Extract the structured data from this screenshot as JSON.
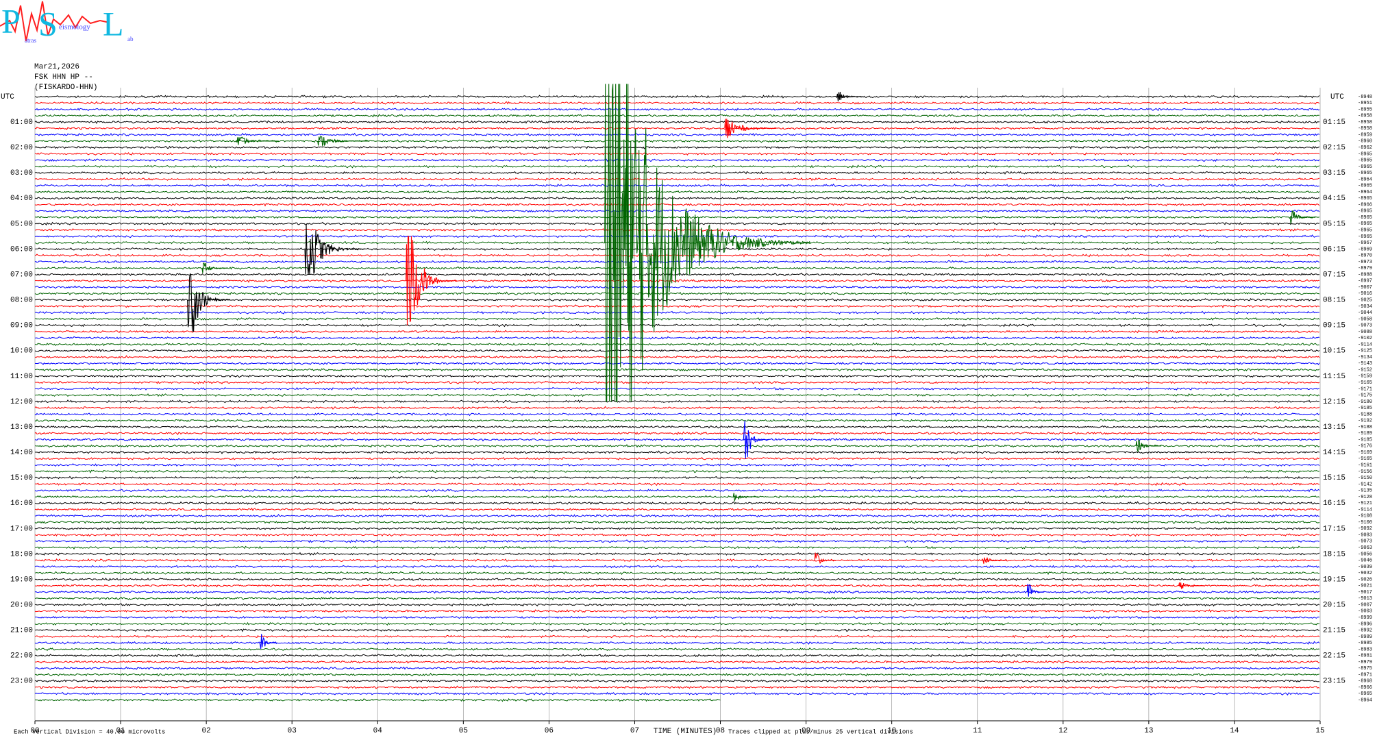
{
  "logo": {
    "p": "P",
    "s": "S",
    "l": "L",
    "w1": "atras",
    "w2": "eismology",
    "w3": "ab"
  },
  "header": {
    "date": "Mar21,2026",
    "channel": "FSK HHN HP --",
    "station": "(FISKARDO-HHN)"
  },
  "chart_data": {
    "type": "helicorder",
    "utc_left": "UTC",
    "utc_right": "UTC",
    "hours_left": [
      "01:00",
      "02:00",
      "03:00",
      "04:00",
      "05:00",
      "06:00",
      "07:00",
      "08:00",
      "09:00",
      "10:00",
      "11:00",
      "12:00",
      "13:00",
      "14:00",
      "15:00",
      "16:00",
      "17:00",
      "18:00",
      "19:00",
      "20:00",
      "21:00",
      "22:00",
      "23:00"
    ],
    "hours_right": [
      "01:15",
      "02:15",
      "03:15",
      "04:15",
      "05:15",
      "06:15",
      "07:15",
      "08:15",
      "09:15",
      "10:15",
      "11:15",
      "12:15",
      "13:15",
      "14:15",
      "15:15",
      "16:15",
      "17:15",
      "18:15",
      "19:15",
      "20:15",
      "21:15",
      "22:15",
      "23:15"
    ],
    "trace_colors": [
      "#000000",
      "#ff0000",
      "#0000ff",
      "#006400"
    ],
    "offsets": [
      -8948,
      -8951,
      -8955,
      -8958,
      -8958,
      -8958,
      -8959,
      -8960,
      -8962,
      -8965,
      -8965,
      -8965,
      -8965,
      -8964,
      -8965,
      -8964,
      -8965,
      -8966,
      -8965,
      -8965,
      -8965,
      -8965,
      -8965,
      -8967,
      -8969,
      -8970,
      -8973,
      -8979,
      -8988,
      -8997,
      -9007,
      -9016,
      -9025,
      -9034,
      -9044,
      -9058,
      -9073,
      -9088,
      -9102,
      -9114,
      -9125,
      -9134,
      -9143,
      -9152,
      -9159,
      -9165,
      -9171,
      -9175,
      -9180,
      -9185,
      -9188,
      -9192,
      -9188,
      -9189,
      -9185,
      -9176,
      -9169,
      -9165,
      -9161,
      -9156,
      -9150,
      -9142,
      -9135,
      -9128,
      -9121,
      -9114,
      -9108,
      -9100,
      -9092,
      -9083,
      -9073,
      -9063,
      -9056,
      -9046,
      -9039,
      -9032,
      -9026,
      -9021,
      -9017,
      -9013,
      -9007,
      -9003,
      -8999,
      -8996,
      -8992,
      -8989,
      -8985,
      -8983,
      -8981,
      -8979,
      -8975,
      -8971,
      -8968,
      -8966,
      -8965,
      -8964
    ],
    "last_trace_minutes": 8,
    "events": [
      {
        "trace": 0,
        "minute": 9.35,
        "amplitude": 0.8,
        "duration": 0.3
      },
      {
        "trace": 5,
        "minute": 8.05,
        "amplitude": 1.5,
        "duration": 0.6
      },
      {
        "trace": 7,
        "minute": 2.35,
        "amplitude": 0.6,
        "duration": 0.5
      },
      {
        "trace": 7,
        "minute": 3.3,
        "amplitude": 0.7,
        "duration": 0.6
      },
      {
        "trace": 19,
        "minute": 14.65,
        "amplitude": 1.0,
        "duration": 0.3
      },
      {
        "trace": 23,
        "minute": 6.65,
        "amplitude": 25,
        "duration": 2.4
      },
      {
        "trace": 24,
        "minute": 3.15,
        "amplitude": 4,
        "duration": 0.7
      },
      {
        "trace": 27,
        "minute": 1.95,
        "amplitude": 0.8,
        "duration": 0.3
      },
      {
        "trace": 29,
        "minute": 4.33,
        "amplitude": 7,
        "duration": 0.6
      },
      {
        "trace": 32,
        "minute": 1.78,
        "amplitude": 5,
        "duration": 0.5
      },
      {
        "trace": 54,
        "minute": 8.27,
        "amplitude": 3,
        "duration": 0.3
      },
      {
        "trace": 55,
        "minute": 12.85,
        "amplitude": 0.9,
        "duration": 0.3
      },
      {
        "trace": 63,
        "minute": 8.15,
        "amplitude": 0.6,
        "duration": 0.3
      },
      {
        "trace": 73,
        "minute": 9.1,
        "amplitude": 1.2,
        "duration": 0.25
      },
      {
        "trace": 73,
        "minute": 11.05,
        "amplitude": 0.7,
        "duration": 0.3
      },
      {
        "trace": 77,
        "minute": 13.35,
        "amplitude": 0.5,
        "duration": 0.3
      },
      {
        "trace": 78,
        "minute": 11.58,
        "amplitude": 1.3,
        "duration": 0.2
      },
      {
        "trace": 86,
        "minute": 2.62,
        "amplitude": 1.5,
        "duration": 0.2
      }
    ],
    "xlim": [
      0,
      15
    ],
    "xticks": [
      {
        "value": 0,
        "label": "00"
      },
      {
        "value": 1,
        "label": "01"
      },
      {
        "value": 2,
        "label": "02"
      },
      {
        "value": 3,
        "label": "03"
      },
      {
        "value": 4,
        "label": "04"
      },
      {
        "value": 5,
        "label": "05"
      },
      {
        "value": 6,
        "label": "06"
      },
      {
        "value": 7,
        "label": "07"
      },
      {
        "value": 8,
        "label": "08"
      },
      {
        "value": 9,
        "label": "09"
      },
      10,
      11,
      12,
      13,
      14,
      15
    ],
    "xlabel": "TIME (MINUTES)",
    "scale_note": "Each Vertical Division =   40.00 microvolts",
    "clip_note": "Traces clipped at plus/minus 25 vertical divisions",
    "grid": true
  }
}
